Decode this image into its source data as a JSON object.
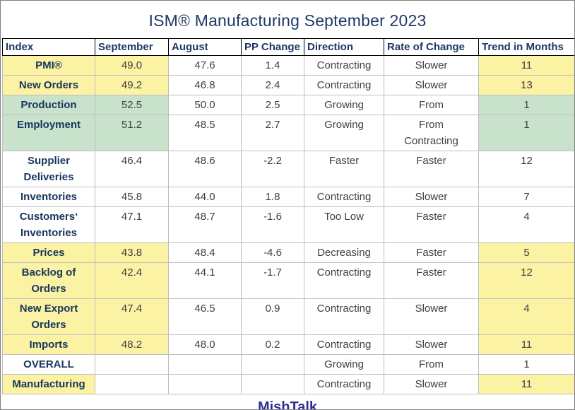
{
  "title": "ISM® Manufacturing September 2023",
  "footer": "MishTalk",
  "colors": {
    "title_text": "#1F3864",
    "header_text": "#1F3864",
    "index_text": "#17365D",
    "value_text": "#404040",
    "footer_text": "#2E3192",
    "yellow": "#FBF2A3",
    "green": "#C9E2CB"
  },
  "chart_data": {
    "type": "table",
    "title": "ISM® Manufacturing September 2023",
    "columns": [
      "Index",
      "September",
      "August",
      "PP Change",
      "Direction",
      "Rate of Change",
      "Trend in Months"
    ],
    "rows": [
      {
        "cells": [
          "PMI®",
          "49.0",
          "47.6",
          "1.4",
          "Contracting",
          "Slower",
          "11"
        ],
        "highlight": "yellow"
      },
      {
        "cells": [
          "New Orders",
          "49.2",
          "46.8",
          "2.4",
          "Contracting",
          "Slower",
          "13"
        ],
        "highlight": "yellow"
      },
      {
        "cells": [
          "Production",
          "52.5",
          "50.0",
          "2.5",
          "Growing",
          "From",
          "1"
        ],
        "highlight": "green"
      },
      {
        "cells": [
          "Employment",
          "51.2",
          "48.5",
          "2.7",
          "Growing",
          "From\nContracting",
          "1"
        ],
        "highlight": "green"
      },
      {
        "cells": [
          "Supplier\nDeliveries",
          "46.4",
          "48.6",
          "-2.2",
          "Faster",
          "Faster",
          "12"
        ],
        "highlight": null
      },
      {
        "cells": [
          "Inventories",
          "45.8",
          "44.0",
          "1.8",
          "Contracting",
          "Slower",
          "7"
        ],
        "highlight": null
      },
      {
        "cells": [
          "Customers‘\nInventories",
          "47.1",
          "48.7",
          "-1.6",
          "Too Low",
          "Faster",
          "4"
        ],
        "highlight": null
      },
      {
        "cells": [
          "Prices",
          "43.8",
          "48.4",
          "-4.6",
          "Decreasing",
          "Faster",
          "5"
        ],
        "highlight": "yellow"
      },
      {
        "cells": [
          "Backlog of\nOrders",
          "42.4",
          "44.1",
          "-1.7",
          "Contracting",
          "Faster",
          "12"
        ],
        "highlight": "yellow"
      },
      {
        "cells": [
          "New Export\nOrders",
          "47.4",
          "46.5",
          "0.9",
          "Contracting",
          "Slower",
          "4"
        ],
        "highlight": "yellow"
      },
      {
        "cells": [
          "Imports",
          "48.2",
          "48.0",
          "0.2",
          "Contracting",
          "Slower",
          "11"
        ],
        "highlight": "yellow"
      },
      {
        "cells": [
          "OVERALL",
          "",
          "",
          "",
          "Growing",
          "From",
          "1"
        ],
        "highlight": null
      },
      {
        "cells": [
          "Manufacturing",
          "",
          "",
          "",
          "Contracting",
          "Slower",
          "11"
        ],
        "highlight": "yellow"
      }
    ]
  }
}
